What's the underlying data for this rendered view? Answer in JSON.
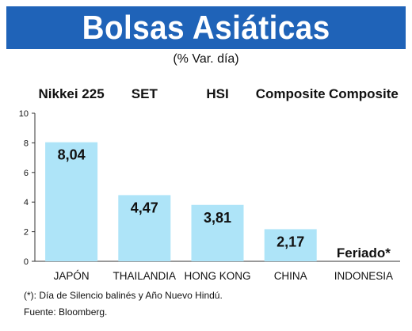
{
  "title": "Bolsas Asiáticas",
  "subtitle": "(% Var. día)",
  "footnote": "(*): Día de Silencio balinés y Año Nuevo Hindú.",
  "source": "Fuente: Bloomberg.",
  "colors": {
    "banner": "#1f63b8",
    "bar": "#aee4f8",
    "title_text": "#ffffff",
    "text": "#111111"
  },
  "chart_data": {
    "type": "bar",
    "index_names": [
      "Nikkei 225",
      "SET",
      "HSI",
      "Composite",
      "Composite"
    ],
    "categories": [
      "JAPÓN",
      "THAILANDIA",
      "HONG KONG",
      "CHINA",
      "INDONESIA"
    ],
    "values": [
      8.04,
      4.47,
      3.81,
      2.17,
      null
    ],
    "data_labels": [
      "8,04",
      "4,47",
      "3,81",
      "2,17",
      "Feriado*"
    ],
    "ylim": [
      0,
      10
    ],
    "yticks": [
      "0",
      "2",
      "4",
      "6",
      "8",
      "10"
    ],
    "ytick_values": [
      0,
      2,
      4,
      6,
      8,
      10
    ],
    "grid": false,
    "legend": "none"
  }
}
